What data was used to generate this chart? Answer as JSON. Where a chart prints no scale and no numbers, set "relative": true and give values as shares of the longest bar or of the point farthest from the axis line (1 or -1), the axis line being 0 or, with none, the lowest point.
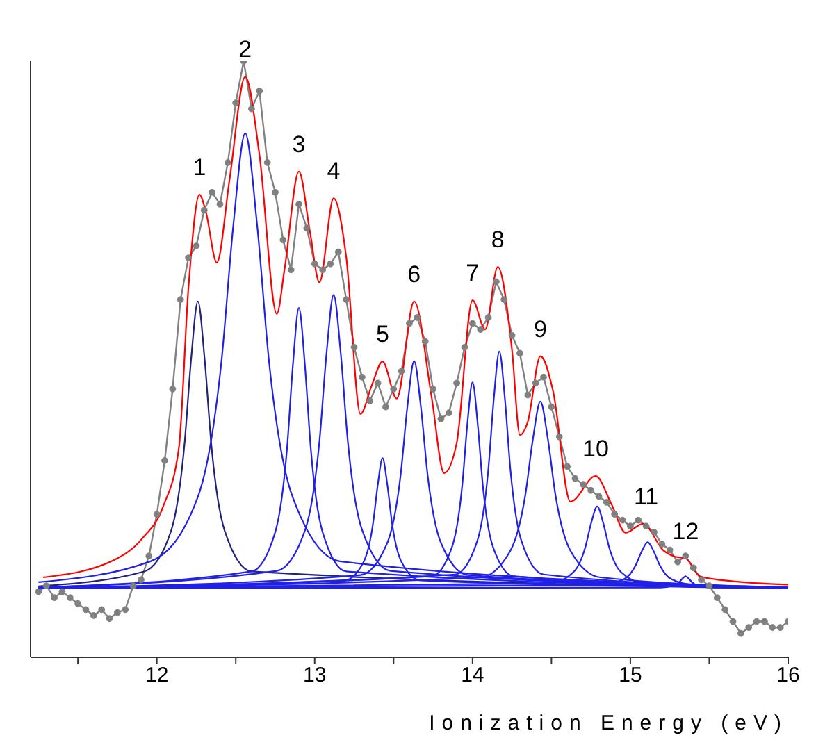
{
  "chart_data": {
    "type": "line",
    "relative": true,
    "xlabel": "Ionization Energy (eV)",
    "xlim": [
      11.2,
      16.0
    ],
    "xticks": [
      {
        "value": 11.5,
        "label": null
      },
      12,
      {
        "value": 12.5,
        "label": null
      },
      13,
      {
        "value": 13.5,
        "label": null
      },
      14,
      {
        "value": 14.5,
        "label": null
      },
      15,
      {
        "value": 15.5,
        "label": null
      },
      16
    ],
    "grid": false,
    "annotations": [
      {
        "text": "1",
        "x": 12.27,
        "y": 0.776
      },
      {
        "text": "2",
        "x": 12.56,
        "y": 0.974
      },
      {
        "text": "3",
        "x": 12.9,
        "y": 0.815
      },
      {
        "text": "4",
        "x": 13.12,
        "y": 0.77
      },
      {
        "text": "5",
        "x": 13.43,
        "y": 0.496
      },
      {
        "text": "6",
        "x": 13.63,
        "y": 0.597
      },
      {
        "text": "7",
        "x": 14.0,
        "y": 0.599
      },
      {
        "text": "8",
        "x": 14.16,
        "y": 0.655
      },
      {
        "text": "9",
        "x": 14.43,
        "y": 0.505
      },
      {
        "text": "10",
        "x": 14.78,
        "y": 0.304
      },
      {
        "text": "11",
        "x": 15.1,
        "y": 0.224
      },
      {
        "text": "12",
        "x": 15.35,
        "y": 0.166
      }
    ],
    "series": [
      {
        "color": "#808080",
        "marker": "circle",
        "x": [
          11.25,
          11.3,
          11.35,
          11.4,
          11.45,
          11.5,
          11.55,
          11.6,
          11.65,
          11.7,
          11.75,
          11.8,
          11.85,
          11.9,
          11.95,
          12.0,
          12.05,
          12.1,
          12.15,
          12.2,
          12.25,
          12.3,
          12.35,
          12.4,
          12.45,
          12.5,
          12.55,
          12.6,
          12.65,
          12.7,
          12.75,
          12.8,
          12.85,
          12.9,
          12.95,
          13.0,
          13.05,
          13.1,
          13.15,
          13.2,
          13.25,
          13.3,
          13.35,
          13.4,
          13.45,
          13.5,
          13.55,
          13.6,
          13.65,
          13.7,
          13.75,
          13.8,
          13.85,
          13.9,
          13.95,
          14.0,
          14.05,
          14.1,
          14.15,
          14.2,
          14.25,
          14.3,
          14.35,
          14.4,
          14.45,
          14.5,
          14.55,
          14.6,
          14.65,
          14.7,
          14.75,
          14.8,
          14.85,
          14.9,
          14.95,
          15.0,
          15.05,
          15.1,
          15.15,
          15.2,
          15.25,
          15.3,
          15.35,
          15.4,
          15.45,
          15.5,
          15.55,
          15.6,
          15.65,
          15.7,
          15.75,
          15.8,
          15.85,
          15.9,
          15.95,
          16.0
        ],
        "values": [
          0.11,
          0.12,
          0.1,
          0.11,
          0.1,
          0.09,
          0.08,
          0.07,
          0.08,
          0.065,
          0.075,
          0.08,
          0.12,
          0.13,
          0.17,
          0.24,
          0.33,
          0.45,
          0.6,
          0.67,
          0.69,
          0.75,
          0.78,
          0.76,
          0.83,
          0.93,
          1.0,
          0.92,
          0.95,
          0.83,
          0.78,
          0.7,
          0.65,
          0.76,
          0.72,
          0.66,
          0.65,
          0.66,
          0.68,
          0.6,
          0.52,
          0.47,
          0.43,
          0.46,
          0.42,
          0.45,
          0.48,
          0.56,
          0.57,
          0.53,
          0.45,
          0.4,
          0.41,
          0.46,
          0.52,
          0.56,
          0.55,
          0.57,
          0.63,
          0.6,
          0.54,
          0.51,
          0.44,
          0.46,
          0.47,
          0.42,
          0.37,
          0.32,
          0.3,
          0.29,
          0.28,
          0.27,
          0.26,
          0.24,
          0.23,
          0.22,
          0.23,
          0.22,
          0.21,
          0.19,
          0.18,
          0.16,
          0.17,
          0.15,
          0.13,
          0.12,
          0.1,
          0.08,
          0.06,
          0.04,
          0.05,
          0.06,
          0.06,
          0.05,
          0.05,
          0.06
        ]
      },
      {
        "color": "#ff0000",
        "marker": "none",
        "x": [
          11.28,
          11.72,
          11.91,
          12.04,
          12.14,
          12.2,
          12.27,
          12.31,
          12.38,
          12.46,
          12.56,
          12.65,
          12.76,
          12.81,
          12.9,
          12.97,
          13.03,
          13.12,
          13.2,
          13.29,
          13.36,
          13.43,
          13.52,
          13.63,
          13.74,
          13.82,
          13.9,
          14.0,
          14.08,
          14.16,
          14.25,
          14.3,
          14.35,
          14.43,
          14.51,
          14.62,
          14.78,
          14.88,
          14.97,
          15.08,
          15.21,
          15.28,
          15.35,
          15.44,
          15.63,
          16.0
        ],
        "values": [
          0.134,
          0.162,
          0.2,
          0.253,
          0.352,
          0.619,
          0.776,
          0.748,
          0.662,
          0.8,
          0.974,
          0.843,
          0.576,
          0.653,
          0.815,
          0.714,
          0.629,
          0.77,
          0.671,
          0.408,
          0.455,
          0.496,
          0.434,
          0.597,
          0.438,
          0.309,
          0.36,
          0.599,
          0.55,
          0.655,
          0.516,
          0.373,
          0.395,
          0.505,
          0.447,
          0.261,
          0.304,
          0.257,
          0.209,
          0.224,
          0.179,
          0.169,
          0.166,
          0.136,
          0.128,
          0.122
        ]
      },
      {
        "color": "#22227a",
        "marker": "none",
        "x": [
          11.25,
          11.92,
          12.09,
          12.175,
          12.2175,
          12.26,
          12.3025,
          12.345,
          12.43,
          12.6,
          16.0
        ],
        "values": [
          0.119,
          0.144,
          0.212,
          0.357,
          0.501,
          0.597,
          0.501,
          0.357,
          0.212,
          0.144,
          0.116
        ]
      },
      {
        "color": "#2020e8",
        "marker": "none",
        "x": [
          11.25,
          11.96,
          12.26,
          12.41,
          12.485,
          12.56,
          12.635,
          12.71,
          12.86,
          13.16,
          16.0
        ],
        "values": [
          0.126,
          0.161,
          0.269,
          0.498,
          0.726,
          0.879,
          0.726,
          0.498,
          0.269,
          0.161,
          0.117
        ]
      },
      {
        "color": "#2020e8",
        "marker": "none",
        "x": [
          11.25,
          12.6,
          12.75,
          12.825,
          12.8625,
          12.9,
          12.9375,
          12.975,
          13.05,
          13.2,
          16.0
        ],
        "values": [
          0.117,
          0.144,
          0.21,
          0.351,
          0.492,
          0.586,
          0.492,
          0.351,
          0.21,
          0.144,
          0.116
        ]
      },
      {
        "color": "#2020e8",
        "marker": "none",
        "x": [
          11.25,
          12.76,
          12.94,
          13.03,
          13.075,
          13.12,
          13.165,
          13.21,
          13.3,
          13.48,
          16.0
        ],
        "values": [
          0.117,
          0.145,
          0.214,
          0.362,
          0.51,
          0.608,
          0.51,
          0.362,
          0.214,
          0.145,
          0.116
        ]
      },
      {
        "color": "#2020e8",
        "marker": "none",
        "x": [
          11.25,
          13.19,
          13.31,
          13.37,
          13.4,
          13.43,
          13.46,
          13.49,
          13.55,
          13.67,
          16.0
        ],
        "values": [
          0.116,
          0.129,
          0.16,
          0.225,
          0.29,
          0.334,
          0.29,
          0.225,
          0.16,
          0.129,
          0.116
        ]
      },
      {
        "color": "#2020e8",
        "marker": "none",
        "x": [
          11.25,
          13.29,
          13.46,
          13.545,
          13.5875,
          13.63,
          13.6725,
          13.715,
          13.8,
          13.97,
          16.0
        ],
        "values": [
          0.116,
          0.138,
          0.192,
          0.307,
          0.421,
          0.497,
          0.421,
          0.307,
          0.192,
          0.138,
          0.117
        ]
      },
      {
        "color": "#2020e8",
        "marker": "none",
        "x": [
          11.25,
          13.74,
          13.87,
          13.935,
          13.9675,
          14.0,
          14.0325,
          14.065,
          14.13,
          14.26,
          16.0
        ],
        "values": [
          0.116,
          0.136,
          0.185,
          0.289,
          0.392,
          0.461,
          0.392,
          0.289,
          0.185,
          0.136,
          0.116
        ]
      },
      {
        "color": "#2020e8",
        "marker": "none",
        "x": [
          11.25,
          13.89,
          14.03,
          14.1,
          14.135,
          14.17,
          14.205,
          14.24,
          14.31,
          14.45,
          16.0
        ],
        "values": [
          0.116,
          0.139,
          0.195,
          0.315,
          0.434,
          0.513,
          0.434,
          0.315,
          0.195,
          0.139,
          0.116
        ]
      },
      {
        "color": "#2020e8",
        "marker": "none",
        "x": [
          11.25,
          14.05,
          14.24,
          14.335,
          14.3825,
          14.43,
          14.4775,
          14.525,
          14.62,
          14.81,
          16.0
        ],
        "values": [
          0.116,
          0.134,
          0.179,
          0.273,
          0.366,
          0.429,
          0.366,
          0.273,
          0.179,
          0.134,
          0.117
        ]
      },
      {
        "color": "#2020e8",
        "marker": "none",
        "x": [
          11.25,
          14.49,
          14.64,
          14.715,
          14.7525,
          14.79,
          14.8275,
          14.865,
          14.94,
          15.09,
          16.0
        ],
        "values": [
          0.116,
          0.124,
          0.143,
          0.185,
          0.226,
          0.253,
          0.226,
          0.185,
          0.143,
          0.124,
          0.116
        ]
      },
      {
        "color": "#2020e8",
        "marker": "none",
        "x": [
          11.25,
          14.81,
          14.96,
          15.035,
          15.0725,
          15.11,
          15.1475,
          15.185,
          15.26,
          15.41,
          16.0
        ],
        "values": [
          0.116,
          0.121,
          0.131,
          0.155,
          0.178,
          0.193,
          0.178,
          0.155,
          0.131,
          0.121,
          0.116
        ]
      },
      {
        "color": "#2020e8",
        "marker": "none",
        "x": [
          11.25,
          15.19,
          15.27,
          15.31,
          15.33,
          15.35,
          15.37,
          15.39,
          15.43,
          15.51,
          16.0
        ],
        "values": [
          0.116,
          0.117,
          0.12,
          0.126,
          0.132,
          0.136,
          0.132,
          0.126,
          0.12,
          0.117,
          0.116
        ]
      }
    ]
  }
}
